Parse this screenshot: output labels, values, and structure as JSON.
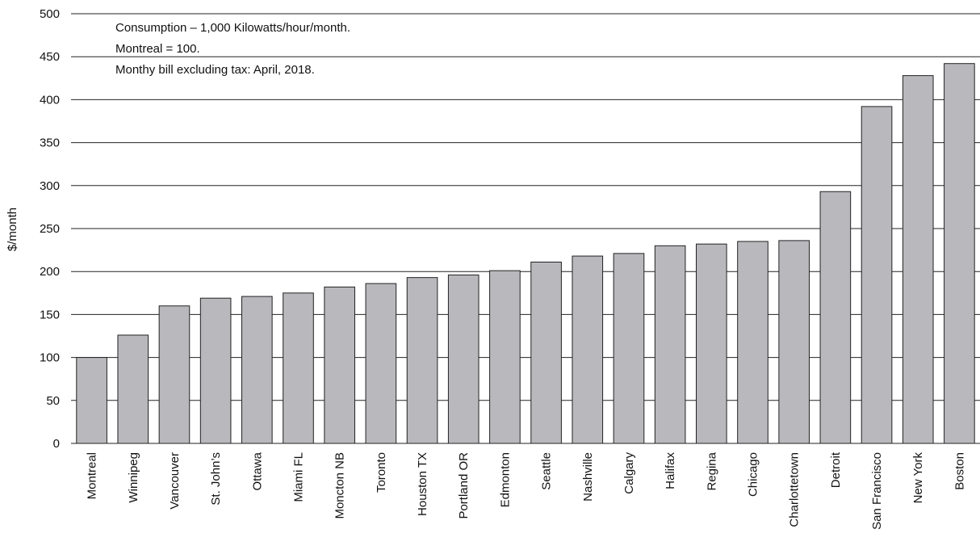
{
  "chart_data": {
    "type": "bar",
    "categories": [
      "Montreal",
      "Winnipeg",
      "Vancouver",
      "St. John’s",
      "Ottawa",
      "Miami FL",
      "Moncton NB",
      "Toronto",
      "Houston TX",
      "Portland OR",
      "Edmonton",
      "Seattle",
      "Nashville",
      "Calgary",
      "Halifax",
      "Regina",
      "Chicago",
      "Charlottetown",
      "Detroit",
      "San Francisco",
      "New York",
      "Boston"
    ],
    "values": [
      100,
      126,
      160,
      169,
      171,
      175,
      182,
      186,
      193,
      196,
      201,
      211,
      218,
      221,
      230,
      232,
      235,
      236,
      293,
      392,
      428,
      442
    ],
    "ylabel": "$/month",
    "ylim": [
      0,
      500
    ],
    "yticks": [
      0,
      50,
      100,
      150,
      200,
      250,
      300,
      350,
      400,
      450,
      500
    ],
    "grid": true,
    "bar_color": "#b9b9bd",
    "notes": [
      "Consumption – 1,000 Kilowatts/hour/month.",
      "Montreal = 100.",
      "Monthy bill excluding tax: April, 2018."
    ]
  }
}
